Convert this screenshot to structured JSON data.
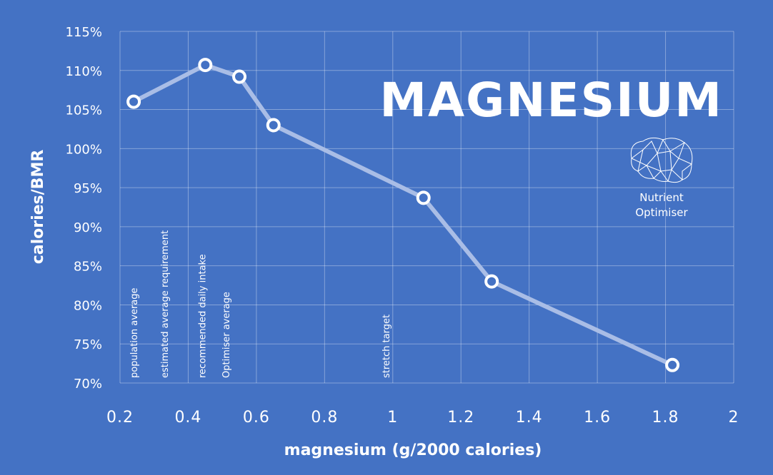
{
  "chart_data": {
    "type": "line",
    "title": "MAGNESIUM",
    "xlabel": "magnesium (g/2000 calories)",
    "ylabel": "calories/BMR",
    "xlim": [
      0.2,
      2
    ],
    "ylim": [
      70,
      115
    ],
    "xticks": [
      "0.2",
      "0.4",
      "0.6",
      "0.8",
      "1",
      "1.2",
      "1.4",
      "1.6",
      "1.8",
      "2"
    ],
    "yticks": [
      "70%",
      "75%",
      "80%",
      "85%",
      "90%",
      "95%",
      "100%",
      "105%",
      "110%",
      "115%"
    ],
    "grid": true,
    "series": [
      {
        "x": [
          0.24,
          0.45,
          0.55,
          0.65,
          1.09,
          1.29,
          1.82
        ],
        "y": [
          106.0,
          110.7,
          109.2,
          103.0,
          93.7,
          83.0,
          72.3
        ]
      }
    ],
    "annotations": [
      {
        "label": "population average",
        "x": 0.24
      },
      {
        "label": "estimated average requirement",
        "x": 0.33
      },
      {
        "label": "recommended daily intake",
        "x": 0.44
      },
      {
        "label": "Optimiser average",
        "x": 0.51
      },
      {
        "label": "stretch target",
        "x": 0.98
      }
    ],
    "colors": {
      "background": "#4472c4",
      "line": "#a9bde6",
      "marker_fill": "#4472c4",
      "text": "#ffffff"
    }
  },
  "logo": {
    "line1": "Nutrient",
    "line2": "Optimiser",
    "icon": "brain-network-icon"
  }
}
